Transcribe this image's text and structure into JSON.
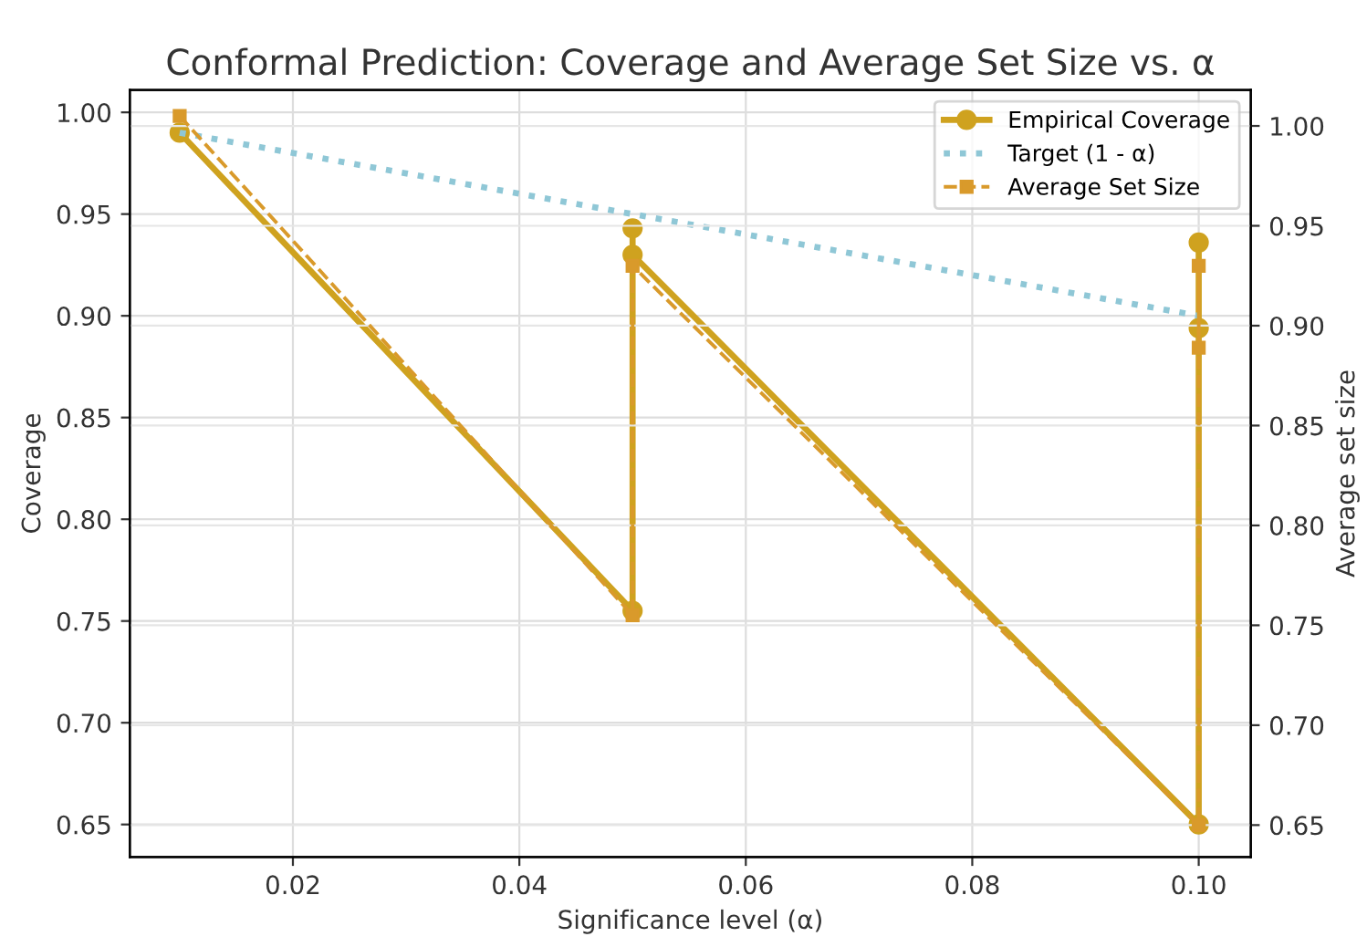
{
  "chart_data": {
    "type": "line",
    "title": "Conformal Prediction: Coverage and Average Set Size vs. α",
    "xlabel": "Significance level (α)",
    "ylabel": "Coverage",
    "y2label": "Average set size",
    "series": [
      {
        "name": "Empirical Coverage",
        "color": "#cfa21f",
        "marker": "circle",
        "line_style": "solid",
        "x": [
          0.01,
          0.05,
          0.05,
          0.05,
          0.1,
          0.1,
          0.1
        ],
        "values": [
          0.99,
          0.755,
          0.943,
          0.93,
          0.65,
          0.936,
          0.894
        ]
      },
      {
        "name": "Target (1 - α)",
        "color": "#8fc7d6",
        "marker": "none",
        "line_style": "dotted",
        "x": [
          0.01,
          0.05,
          0.1
        ],
        "values": [
          0.99,
          0.95,
          0.9
        ]
      },
      {
        "name": "Average Set Size",
        "color": "#d99a2b",
        "marker": "square",
        "line_style": "dashed",
        "axis": "y2",
        "x": [
          0.01,
          0.05,
          0.05,
          0.1,
          0.1,
          0.1
        ],
        "values": [
          1.005,
          0.755,
          0.93,
          0.65,
          0.93,
          0.889
        ]
      }
    ],
    "xlim": [
      0.0056,
      0.1046
    ],
    "xticks": [
      0.02,
      0.04,
      0.06,
      0.08,
      {
        "value": 0.1,
        "label": "0.10"
      }
    ],
    "ylim": [
      0.634,
      1.011
    ],
    "yticks": [
      0.65,
      {
        "value": 0.7,
        "label": "0.70"
      },
      0.75,
      {
        "value": 0.8,
        "label": "0.80"
      },
      0.85,
      {
        "value": 0.9,
        "label": "0.90"
      },
      0.95,
      {
        "value": 1,
        "label": "1.00"
      }
    ],
    "y2lim": [
      0.634,
      1.018
    ],
    "y2ticks": [
      0.65,
      {
        "value": 0.7,
        "label": "0.70"
      },
      0.75,
      {
        "value": 0.8,
        "label": "0.80"
      },
      0.85,
      {
        "value": 0.9,
        "label": "0.90"
      },
      0.95,
      {
        "value": 1,
        "label": "1.00"
      }
    ],
    "grid": true,
    "legend": "top right"
  }
}
